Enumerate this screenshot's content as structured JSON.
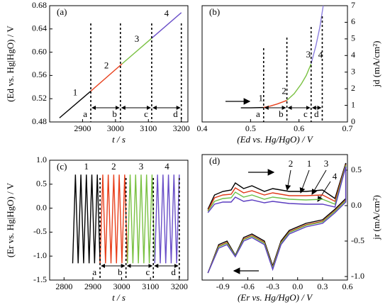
{
  "chart_data": [
    {
      "type": "line",
      "title": "(a)",
      "x_label": "t / s",
      "y_label": "(Ed vs. Hg|HgO) / V",
      "y_axis_side": "left",
      "xlim": [
        2800,
        3220
      ],
      "xticks": [
        2900,
        3000,
        3100,
        3200
      ],
      "ylim": [
        0.48,
        0.68
      ],
      "yticks": [
        0.48,
        0.52,
        0.56,
        {
          "value": 0.6,
          "label": "0.60"
        },
        0.64,
        0.68
      ],
      "series": [
        {
          "name": "1",
          "color": "#000000",
          "x": [
            2830,
            2925
          ],
          "values": [
            0.487,
            0.533
          ]
        },
        {
          "name": "2",
          "color": "#e8401c",
          "x": [
            2925,
            3020
          ],
          "values": [
            0.533,
            0.58
          ]
        },
        {
          "name": "3",
          "color": "#7ac142",
          "x": [
            3020,
            3110
          ],
          "values": [
            0.58,
            0.624
          ]
        },
        {
          "name": "4",
          "color": "#6a4fc8",
          "x": [
            3110,
            3200
          ],
          "values": [
            0.624,
            0.668
          ]
        }
      ],
      "boundaries": [
        {
          "label": "a",
          "x": 2925
        },
        {
          "label": "b",
          "x": 3015
        },
        {
          "label": "c",
          "x": 3110
        },
        {
          "label": "d",
          "x": 3200
        }
      ]
    },
    {
      "type": "line",
      "title": "(b)",
      "x_label": "(Ed vs. Hg/HgO) / V",
      "y_label": "jd (mA/cm²)",
      "y_axis_side": "right",
      "xlim": [
        0.4,
        0.7
      ],
      "xticks": [
        0.4,
        0.5,
        0.6,
        0.7
      ],
      "ylim": [
        0,
        7
      ],
      "yticks": [
        0,
        1,
        2,
        3,
        4,
        5,
        6,
        7
      ],
      "series": [
        {
          "name": "1",
          "color": "#000000",
          "x": [
            0.48,
            0.5,
            0.527
          ],
          "values": [
            0.85,
            0.85,
            0.87
          ]
        },
        {
          "name": "2",
          "color": "#e8401c",
          "x": [
            0.527,
            0.54,
            0.555,
            0.575
          ],
          "values": [
            0.87,
            0.95,
            1.08,
            1.3
          ]
        },
        {
          "name": "3",
          "color": "#7ac142",
          "x": [
            0.575,
            0.59,
            0.605,
            0.615,
            0.625
          ],
          "values": [
            1.3,
            1.7,
            2.3,
            2.8,
            3.5
          ]
        },
        {
          "name": "4",
          "color": "#8d7fe0",
          "x": [
            0.625,
            0.635,
            0.643,
            0.65
          ],
          "values": [
            3.5,
            4.6,
            5.7,
            7
          ]
        }
      ],
      "boundaries": [
        {
          "label": "a",
          "x": 0.527
        },
        {
          "label": "b",
          "x": 0.575
        },
        {
          "label": "c",
          "x": 0.625
        },
        {
          "label": "d",
          "x": 0.648
        }
      ]
    },
    {
      "type": "line",
      "title": "(c)",
      "x_label": "t / s",
      "y_label": "(Er vs. Hg|HgO) / V",
      "y_axis_side": "left",
      "xlim": [
        2750,
        3230
      ],
      "xticks": [
        2800,
        2900,
        3000,
        3100,
        3200
      ],
      "ylim": [
        -1.5,
        1.0
      ],
      "yticks": [
        -1.5,
        {
          "value": -1.0,
          "label": "-1.0"
        },
        -0.5,
        {
          "value": 0,
          "label": "0.0"
        },
        0.5,
        {
          "value": 1.0,
          "label": "1.0"
        }
      ],
      "series": [
        {
          "name": "1",
          "color": "#000000",
          "x": [
            2830,
            2839.5,
            2849,
            2858.5,
            2868,
            2877.5,
            2887,
            2896.5,
            2906,
            2915.5,
            2925
          ],
          "values": [
            -1.15,
            0.7,
            -1.15,
            0.7,
            -1.15,
            0.7,
            -1.15,
            0.7,
            -1.15,
            0.7,
            -1.15
          ]
        },
        {
          "name": "2",
          "color": "#e8401c",
          "x": [
            2925,
            2934.5,
            2944,
            2953.5,
            2963,
            2972.5,
            2982,
            2991.5,
            3001,
            3010.5,
            3020
          ],
          "values": [
            -1.15,
            0.7,
            -1.15,
            0.7,
            -1.15,
            0.7,
            -1.15,
            0.7,
            -1.15,
            0.7,
            -1.15
          ]
        },
        {
          "name": "3",
          "color": "#7ac142",
          "x": [
            3020,
            3029.5,
            3039,
            3048.5,
            3058,
            3067.5,
            3077,
            3086.5,
            3096,
            3105.5,
            3115
          ],
          "values": [
            -1.15,
            0.7,
            -1.15,
            0.7,
            -1.15,
            0.7,
            -1.15,
            0.7,
            -1.15,
            0.7,
            -1.15
          ]
        },
        {
          "name": "4",
          "color": "#6a4fc8",
          "x": [
            3115,
            3124.5,
            3134,
            3143.5,
            3153,
            3162.5,
            3172,
            3181.5,
            3191,
            3200
          ],
          "values": [
            -1.15,
            0.7,
            -1.15,
            0.7,
            -1.15,
            0.7,
            -1.15,
            0.7,
            -1.15,
            0.7
          ]
        }
      ],
      "boundaries": [
        {
          "label": "a",
          "x": 2925
        },
        {
          "label": "b",
          "x": 3015
        },
        {
          "label": "c",
          "x": 3110
        },
        {
          "label": "d",
          "x": 3200
        }
      ]
    },
    {
      "type": "line",
      "title": "(d)",
      "x_label": "(Er vs. Hg/HgO) / V",
      "y_label": "jr (mA/cm²)",
      "y_axis_side": "right",
      "xlim": [
        -1.15,
        0.6
      ],
      "xticks": [
        -0.9,
        -0.6,
        -0.3,
        {
          "value": 0,
          "label": "0.0"
        },
        0.3,
        0.6
      ],
      "ylim": [
        -1.05,
        0.72
      ],
      "yticks": [
        {
          "value": -1.0,
          "label": "-1.0"
        },
        -0.5,
        {
          "value": 0,
          "label": "0.0"
        },
        0.5
      ],
      "series": [
        {
          "name": "1",
          "color": "#000000",
          "x": [
            -1.08,
            -1.0,
            -0.9,
            -0.8,
            -0.75,
            -0.65,
            -0.55,
            -0.4,
            -0.3,
            -0.1,
            0.1,
            0.3,
            0.45,
            0.58,
            0.58,
            0.45,
            0.3,
            0.1,
            -0.1,
            -0.2,
            -0.3,
            -0.4,
            -0.55,
            -0.65,
            -0.75,
            -0.85,
            -0.95,
            -1.08
          ],
          "values": [
            -0.05,
            0.15,
            0.2,
            0.22,
            0.32,
            0.24,
            0.28,
            0.2,
            0.24,
            0.2,
            0.2,
            0.22,
            0.1,
            0.6,
            0.1,
            -0.05,
            -0.2,
            -0.25,
            -0.35,
            -0.5,
            -0.85,
            -0.5,
            -0.4,
            -0.45,
            -0.7,
            -0.5,
            -0.55,
            -0.95
          ]
        },
        {
          "name": "2",
          "color": "#e03a1a",
          "x": [
            -1.08,
            -1.0,
            -0.9,
            -0.8,
            -0.75,
            -0.65,
            -0.55,
            -0.4,
            -0.3,
            -0.1,
            0.1,
            0.3,
            0.45,
            0.58,
            0.58,
            0.45,
            0.3,
            0.1,
            -0.1,
            -0.2,
            -0.3,
            -0.4,
            -0.55,
            -0.65,
            -0.75,
            -0.85,
            -0.95,
            -1.08
          ],
          "values": [
            -0.07,
            0.11,
            0.15,
            0.16,
            0.25,
            0.18,
            0.21,
            0.15,
            0.18,
            0.14,
            0.14,
            0.15,
            0.06,
            0.58,
            0.08,
            -0.07,
            -0.22,
            -0.27,
            -0.37,
            -0.52,
            -0.87,
            -0.52,
            -0.42,
            -0.47,
            -0.71,
            -0.52,
            -0.57,
            -0.95
          ]
        },
        {
          "name": "3",
          "color": "#6cc04a",
          "x": [
            -1.08,
            -1.0,
            -0.9,
            -0.8,
            -0.75,
            -0.65,
            -0.55,
            -0.4,
            -0.3,
            -0.1,
            0.1,
            0.3,
            0.45,
            0.58,
            0.58,
            0.45,
            0.3,
            0.1,
            -0.1,
            -0.2,
            -0.3,
            -0.4,
            -0.55,
            -0.65,
            -0.75,
            -0.85,
            -0.95,
            -1.08
          ],
          "values": [
            -0.08,
            0.06,
            0.1,
            0.11,
            0.19,
            0.12,
            0.15,
            0.09,
            0.12,
            0.09,
            0.08,
            0.09,
            0.02,
            0.57,
            0.07,
            -0.08,
            -0.23,
            -0.28,
            -0.38,
            -0.53,
            -0.88,
            -0.53,
            -0.43,
            -0.48,
            -0.71,
            -0.53,
            -0.58,
            -0.95
          ]
        },
        {
          "name": "4",
          "color": "#5a3cc0",
          "x": [
            -1.08,
            -1.0,
            -0.9,
            -0.8,
            -0.75,
            -0.65,
            -0.55,
            -0.4,
            -0.3,
            -0.1,
            0.1,
            0.3,
            0.45,
            0.58,
            0.58,
            0.45,
            0.3,
            0.1,
            -0.1,
            -0.2,
            -0.3,
            -0.4,
            -0.55,
            -0.65,
            -0.75,
            -0.85,
            -0.95,
            -1.08
          ],
          "values": [
            -0.1,
            0.02,
            0.05,
            0.05,
            0.12,
            0.06,
            0.08,
            0.04,
            0.06,
            0.03,
            0.02,
            0.02,
            -0.02,
            0.55,
            0.05,
            -0.1,
            -0.25,
            -0.3,
            -0.4,
            -0.55,
            -0.9,
            -0.55,
            -0.45,
            -0.5,
            -0.72,
            -0.55,
            -0.6,
            -0.95
          ]
        }
      ]
    }
  ]
}
